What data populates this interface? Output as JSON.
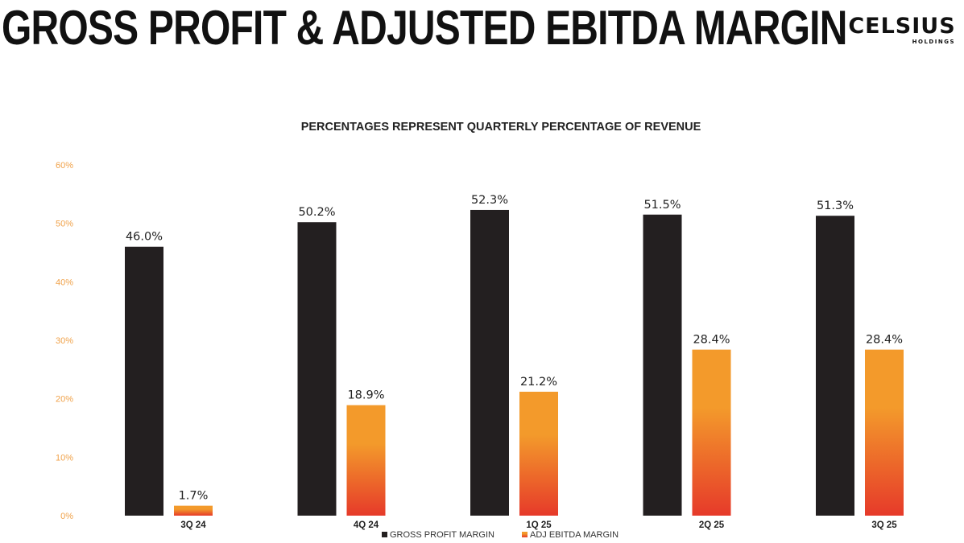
{
  "title": "GROSS PROFIT & ADJUSTED EBITDA MARGIN",
  "logo": {
    "brand": "CELSIUS",
    "sub": "HOLDINGS"
  },
  "colors": {
    "gross": "#231f20",
    "ebitda_top": "#f39a2b",
    "ebitda_bottom": "#e63a2a",
    "axis_ticks": "#f0a24a",
    "text": "#222222"
  },
  "chart_data": {
    "type": "bar",
    "title": "PERCENTAGES REPRESENT QUARTERLY PERCENTAGE OF REVENUE",
    "categories": [
      "3Q 24",
      "4Q 24",
      "1Q 25",
      "2Q 25",
      "3Q 25"
    ],
    "series": [
      {
        "name": "GROSS PROFIT MARGIN",
        "values": [
          46.0,
          50.2,
          52.3,
          51.5,
          51.3
        ],
        "labels": [
          "46.0%",
          "50.2%",
          "52.3%",
          "51.5%",
          "51.3%"
        ]
      },
      {
        "name": "ADJ EBITDA MARGIN",
        "values": [
          1.7,
          18.9,
          21.2,
          28.4,
          28.4
        ],
        "labels": [
          "1.7%",
          "18.9%",
          "21.2%",
          "28.4%",
          "28.4%"
        ]
      }
    ],
    "yticks": [
      "0%",
      "10%",
      "20%",
      "30%",
      "40%",
      "50%",
      "60%"
    ],
    "ylim": [
      0,
      60
    ],
    "xlabel": "",
    "ylabel": "",
    "legend": "bottom-center"
  }
}
